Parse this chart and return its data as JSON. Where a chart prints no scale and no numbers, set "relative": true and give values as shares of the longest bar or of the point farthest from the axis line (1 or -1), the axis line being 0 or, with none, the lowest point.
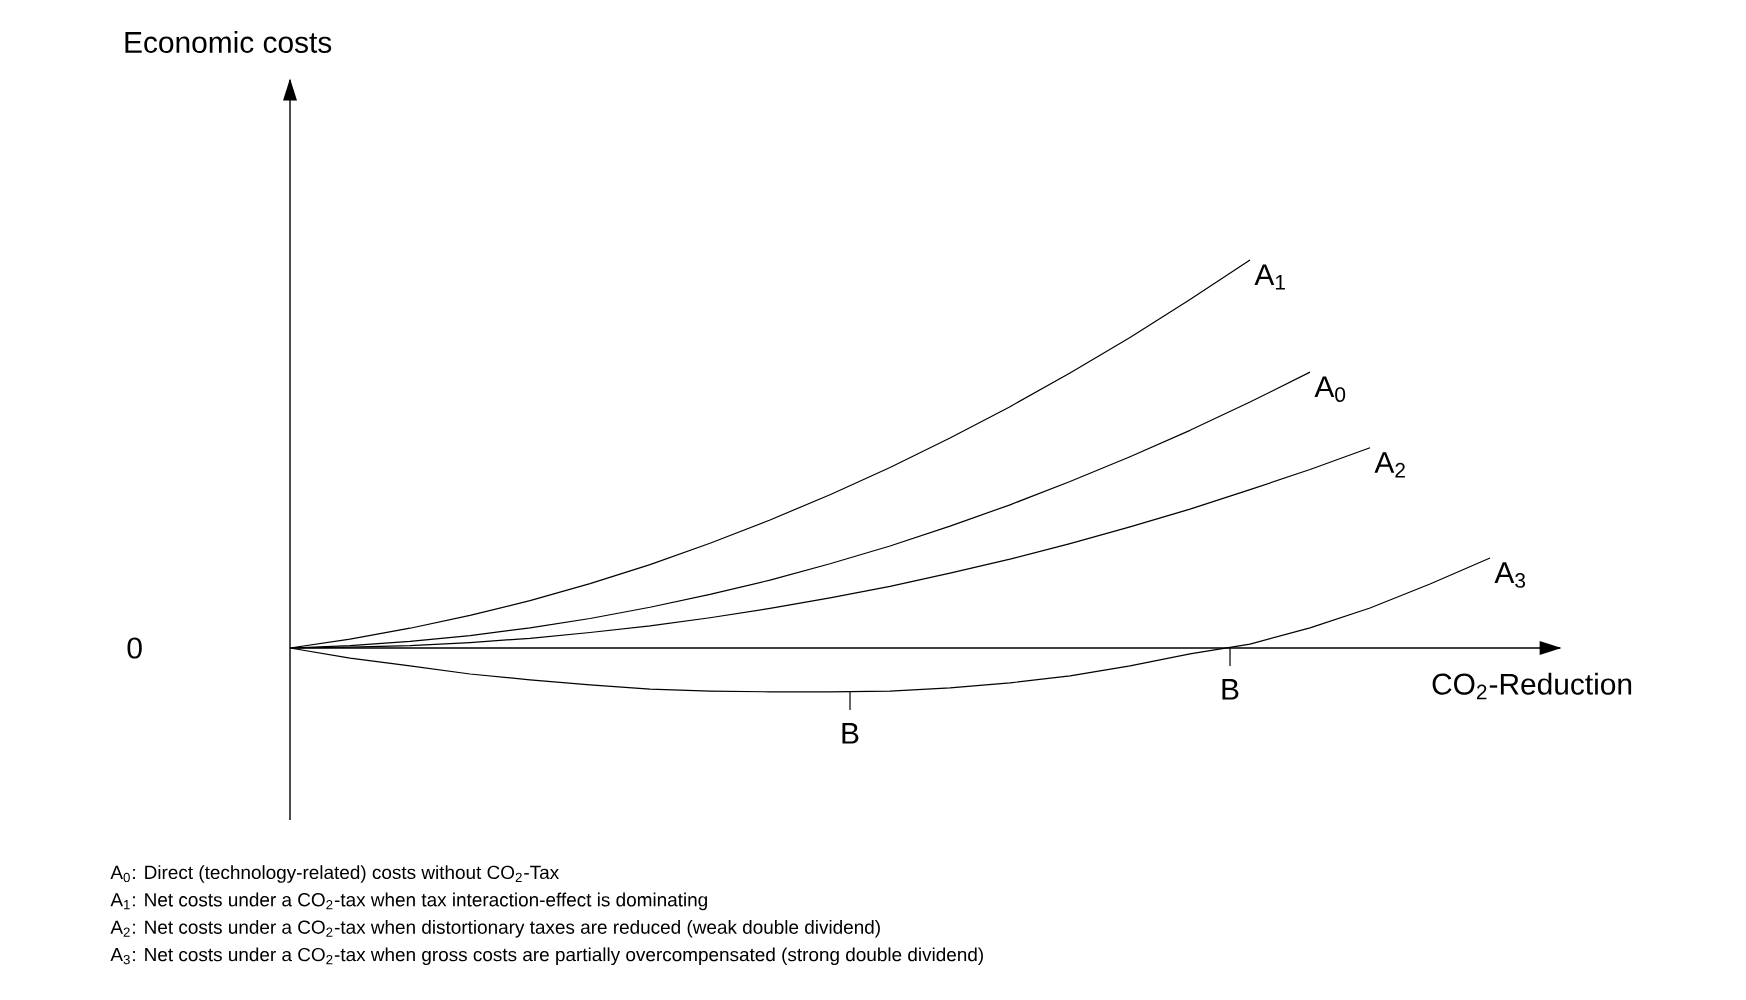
{
  "chart_data": {
    "type": "line",
    "relative": true,
    "xlabel": "CO$_{2}$-Reduction",
    "categories": [
      null,
      null,
      null,
      null,
      null,
      null,
      null,
      null,
      null,
      null,
      null,
      null,
      null,
      null,
      null,
      null,
      null,
      null,
      null,
      null,
      null
    ],
    "series": [
      {
        "name": "A$_{1}$",
        "color": "#000000",
        "values": [
          0,
          0.023,
          0.051,
          0.084,
          0.122,
          0.166,
          0.215,
          0.27,
          0.33,
          0.395,
          0.465,
          0.541,
          0.622,
          0.709,
          0.8,
          0.898,
          1,
          null,
          null,
          null,
          null
        ]
      },
      {
        "name": "A$_{0}$",
        "color": "#000000",
        "values": [
          0,
          0.006,
          0.017,
          0.032,
          0.052,
          0.076,
          0.105,
          0.138,
          0.175,
          0.217,
          0.263,
          0.314,
          0.369,
          0.429,
          0.493,
          0.561,
          0.634,
          0.711,
          null,
          null,
          null
        ]
      },
      {
        "name": "A$_{2}$",
        "color": "#000000",
        "values": [
          0,
          0.002,
          0.006,
          0.014,
          0.025,
          0.04,
          0.057,
          0.078,
          0.102,
          0.129,
          0.159,
          0.193,
          0.229,
          0.269,
          0.312,
          0.358,
          0.408,
          0.46,
          0.516,
          null,
          null
        ]
      },
      {
        "name": "A$_{3}$",
        "color": "#000000",
        "values": [
          0,
          -0.026,
          -0.046,
          -0.067,
          -0.082,
          -0.095,
          -0.106,
          -0.111,
          -0.113,
          -0.113,
          -0.111,
          -0.103,
          -0.09,
          -0.072,
          -0.046,
          -0.015,
          0.01,
          0.052,
          0.103,
          0.165,
          0.232
        ]
      }
    ],
    "annotations": [
      "Economic costs",
      "0",
      "B",
      "B",
      "A$_{0}$: Direct (technology-related) costs without CO$_{2}$-Tax",
      "A$_{1}$: Net costs under a CO$_{2}$-tax when tax interaction-effect is dominating",
      "A$_{2}$: Net costs under a CO$_{2}$-tax when distortionary taxes are reduced (weak double dividend)",
      "A$_{3}$: Net costs under a CO$_{2}$-tax when gross costs are partially overcompensated (strong double dividend)"
    ]
  }
}
